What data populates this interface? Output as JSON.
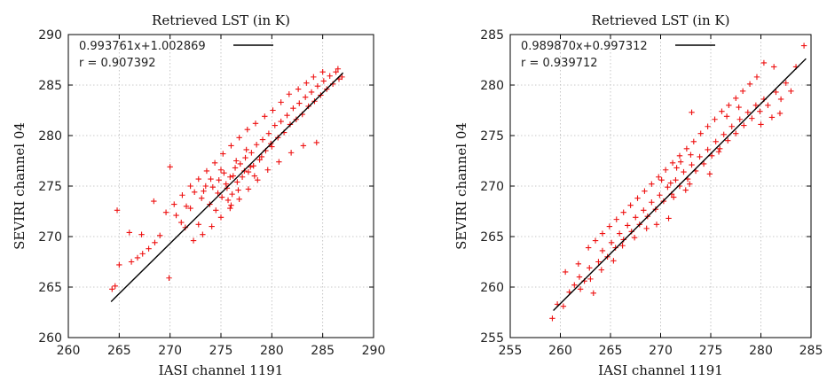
{
  "chart_data": [
    {
      "type": "scatter",
      "title": "Retrieved LST (in K)",
      "xlabel": "IASI channel 1191",
      "ylabel": "SEVIRI channel 04",
      "xlim": [
        260,
        290
      ],
      "ylim": [
        260,
        290
      ],
      "xticks": [
        "260",
        "265",
        "270",
        "275",
        "280",
        "285",
        "290"
      ],
      "yticks": [
        "260",
        "265",
        "270",
        "275",
        "280",
        "285",
        "290"
      ],
      "grid": true,
      "legend_position": "top-left",
      "legend": [
        "0.993761x+1.002869",
        "r = 0.907392"
      ],
      "fit": {
        "slope": 0.993761,
        "intercept": 1.002869,
        "x_range": [
          264.2,
          287.0
        ]
      },
      "point_color": "#ee1111",
      "points": [
        [
          264.3,
          264.8
        ],
        [
          264.6,
          265.1
        ],
        [
          265.0,
          267.2
        ],
        [
          264.8,
          272.6
        ],
        [
          266.2,
          267.5
        ],
        [
          266.8,
          267.9
        ],
        [
          267.3,
          268.3
        ],
        [
          267.9,
          268.8
        ],
        [
          268.5,
          269.4
        ],
        [
          269.0,
          270.1
        ],
        [
          266.0,
          270.4
        ],
        [
          267.2,
          270.2
        ],
        [
          269.9,
          265.9
        ],
        [
          268.4,
          273.5
        ],
        [
          270.0,
          276.9
        ],
        [
          270.6,
          272.1
        ],
        [
          271.1,
          271.4
        ],
        [
          271.6,
          273.0
        ],
        [
          272.0,
          272.8
        ],
        [
          272.4,
          274.4
        ],
        [
          272.8,
          271.2
        ],
        [
          273.1,
          273.8
        ],
        [
          273.5,
          275.0
        ],
        [
          273.9,
          273.2
        ],
        [
          274.2,
          274.9
        ],
        [
          274.5,
          272.6
        ],
        [
          274.8,
          275.6
        ],
        [
          275.1,
          273.9
        ],
        [
          275.3,
          276.3
        ],
        [
          275.6,
          274.8
        ],
        [
          275.9,
          275.9
        ],
        [
          276.1,
          274.2
        ],
        [
          276.4,
          276.8
        ],
        [
          276.6,
          275.4
        ],
        [
          276.9,
          277.2
        ],
        [
          277.1,
          275.9
        ],
        [
          277.4,
          277.8
        ],
        [
          277.7,
          276.4
        ],
        [
          278.0,
          278.3
        ],
        [
          278.2,
          277.0
        ],
        [
          278.5,
          279.1
        ],
        [
          278.8,
          277.6
        ],
        [
          279.1,
          279.6
        ],
        [
          279.4,
          278.5
        ],
        [
          279.7,
          280.2
        ],
        [
          280.0,
          278.9
        ],
        [
          280.3,
          281.0
        ],
        [
          280.6,
          279.8
        ],
        [
          280.9,
          281.4
        ],
        [
          281.2,
          280.3
        ],
        [
          281.5,
          282.0
        ],
        [
          281.8,
          281.1
        ],
        [
          282.1,
          282.7
        ],
        [
          282.4,
          281.6
        ],
        [
          282.7,
          283.2
        ],
        [
          283.0,
          282.1
        ],
        [
          283.3,
          283.8
        ],
        [
          283.6,
          282.9
        ],
        [
          283.9,
          284.3
        ],
        [
          284.2,
          283.4
        ],
        [
          284.5,
          284.9
        ],
        [
          284.8,
          284.0
        ],
        [
          285.1,
          285.4
        ],
        [
          285.4,
          284.6
        ],
        [
          285.7,
          285.9
        ],
        [
          286.0,
          285.1
        ],
        [
          286.3,
          286.3
        ],
        [
          286.6,
          285.6
        ],
        [
          286.9,
          285.8
        ],
        [
          286.5,
          286.6
        ],
        [
          285.0,
          286.3
        ],
        [
          284.1,
          285.8
        ],
        [
          283.4,
          285.2
        ],
        [
          282.6,
          284.6
        ],
        [
          281.7,
          284.1
        ],
        [
          280.9,
          283.3
        ],
        [
          280.1,
          282.5
        ],
        [
          279.3,
          281.9
        ],
        [
          278.4,
          281.2
        ],
        [
          277.6,
          280.6
        ],
        [
          276.8,
          279.8
        ],
        [
          276.0,
          279.0
        ],
        [
          275.2,
          278.2
        ],
        [
          274.4,
          277.3
        ],
        [
          273.6,
          276.5
        ],
        [
          272.8,
          275.7
        ],
        [
          272.0,
          275.0
        ],
        [
          271.2,
          274.1
        ],
        [
          270.4,
          273.2
        ],
        [
          269.6,
          272.4
        ],
        [
          284.4,
          279.3
        ],
        [
          283.1,
          279.0
        ],
        [
          281.9,
          278.3
        ],
        [
          280.7,
          277.4
        ],
        [
          279.6,
          276.6
        ],
        [
          278.6,
          275.6
        ],
        [
          277.7,
          274.7
        ],
        [
          276.8,
          273.7
        ],
        [
          275.9,
          272.8
        ],
        [
          275.0,
          271.9
        ],
        [
          274.1,
          271.0
        ],
        [
          273.2,
          270.2
        ],
        [
          272.3,
          269.6
        ],
        [
          271.5,
          270.9
        ],
        [
          275.5,
          275.2
        ],
        [
          276.2,
          276.0
        ],
        [
          276.7,
          274.6
        ],
        [
          277.3,
          276.5
        ],
        [
          275.7,
          273.6
        ],
        [
          276.5,
          277.5
        ],
        [
          277.9,
          276.9
        ],
        [
          274.7,
          274.3
        ],
        [
          275.0,
          276.6
        ],
        [
          276.0,
          273.1
        ],
        [
          277.5,
          278.6
        ],
        [
          278.3,
          276.0
        ],
        [
          274.0,
          275.7
        ],
        [
          273.3,
          274.5
        ],
        [
          279.0,
          277.9
        ],
        [
          279.9,
          279.2
        ]
      ]
    },
    {
      "type": "scatter",
      "title": "Retrieved LST (in K)",
      "xlabel": "IASI channel 1191",
      "ylabel": "SEVIRI channel 04",
      "xlim": [
        255,
        285
      ],
      "ylim": [
        255,
        285
      ],
      "xticks": [
        "255",
        "260",
        "265",
        "270",
        "275",
        "280",
        "285"
      ],
      "yticks": [
        "255",
        "260",
        "265",
        "270",
        "275",
        "280",
        "285"
      ],
      "grid": true,
      "legend_position": "top-left",
      "legend": [
        "0.989870x+0.997312",
        "r = 0.939712"
      ],
      "fit": {
        "slope": 0.98987,
        "intercept": 0.997312,
        "x_range": [
          259.3,
          284.5
        ]
      },
      "point_color": "#ee1111",
      "points": [
        [
          259.2,
          256.9
        ],
        [
          259.7,
          258.3
        ],
        [
          260.3,
          258.1
        ],
        [
          260.9,
          259.5
        ],
        [
          261.4,
          260.2
        ],
        [
          261.9,
          261.0
        ],
        [
          262.4,
          260.6
        ],
        [
          262.9,
          261.9
        ],
        [
          263.3,
          259.4
        ],
        [
          263.8,
          262.5
        ],
        [
          264.2,
          263.6
        ],
        [
          264.7,
          263.0
        ],
        [
          265.1,
          264.4
        ],
        [
          265.5,
          263.9
        ],
        [
          265.9,
          265.3
        ],
        [
          266.3,
          264.7
        ],
        [
          266.7,
          266.1
        ],
        [
          267.1,
          265.5
        ],
        [
          267.5,
          266.9
        ],
        [
          267.9,
          266.2
        ],
        [
          268.3,
          267.6
        ],
        [
          268.7,
          267.0
        ],
        [
          269.1,
          268.4
        ],
        [
          269.5,
          267.7
        ],
        [
          269.9,
          269.1
        ],
        [
          270.3,
          268.5
        ],
        [
          270.7,
          269.9
        ],
        [
          271.1,
          269.2
        ],
        [
          271.5,
          270.6
        ],
        [
          271.9,
          270.0
        ],
        [
          272.3,
          271.4
        ],
        [
          272.7,
          270.7
        ],
        [
          273.1,
          272.1
        ],
        [
          273.5,
          271.5
        ],
        [
          273.9,
          272.9
        ],
        [
          274.3,
          272.2
        ],
        [
          274.7,
          273.6
        ],
        [
          275.1,
          273.0
        ],
        [
          275.5,
          274.4
        ],
        [
          275.9,
          273.7
        ],
        [
          276.3,
          275.1
        ],
        [
          276.7,
          274.5
        ],
        [
          277.1,
          275.9
        ],
        [
          277.5,
          275.2
        ],
        [
          277.9,
          276.6
        ],
        [
          278.3,
          276.0
        ],
        [
          278.7,
          277.3
        ],
        [
          279.1,
          276.7
        ],
        [
          279.5,
          278.0
        ],
        [
          279.9,
          277.4
        ],
        [
          280.3,
          278.6
        ],
        [
          280.7,
          278.0
        ],
        [
          281.1,
          276.8
        ],
        [
          281.5,
          279.3
        ],
        [
          282.0,
          278.6
        ],
        [
          282.5,
          280.2
        ],
        [
          283.0,
          279.4
        ],
        [
          283.5,
          281.8
        ],
        [
          284.3,
          283.9
        ],
        [
          281.3,
          281.8
        ],
        [
          280.3,
          282.2
        ],
        [
          279.6,
          280.8
        ],
        [
          278.9,
          280.1
        ],
        [
          278.2,
          279.4
        ],
        [
          277.5,
          278.7
        ],
        [
          276.8,
          278.0
        ],
        [
          276.1,
          277.4
        ],
        [
          275.4,
          276.6
        ],
        [
          274.7,
          275.9
        ],
        [
          274.0,
          275.2
        ],
        [
          273.3,
          274.4
        ],
        [
          272.6,
          273.7
        ],
        [
          271.9,
          273.0
        ],
        [
          271.2,
          272.3
        ],
        [
          270.5,
          271.6
        ],
        [
          269.8,
          270.9
        ],
        [
          269.1,
          270.2
        ],
        [
          268.4,
          269.5
        ],
        [
          267.7,
          268.8
        ],
        [
          267.0,
          268.1
        ],
        [
          266.3,
          267.4
        ],
        [
          265.6,
          266.7
        ],
        [
          264.9,
          266.0
        ],
        [
          264.2,
          265.3
        ],
        [
          263.5,
          264.6
        ],
        [
          262.8,
          263.9
        ],
        [
          261.8,
          262.3
        ],
        [
          260.5,
          261.5
        ],
        [
          273.1,
          277.3
        ],
        [
          274.9,
          271.2
        ],
        [
          275.8,
          273.4
        ],
        [
          276.6,
          276.9
        ],
        [
          277.8,
          277.8
        ],
        [
          280.0,
          276.1
        ],
        [
          281.9,
          277.2
        ],
        [
          270.8,
          266.8
        ],
        [
          269.6,
          266.2
        ],
        [
          268.6,
          265.8
        ],
        [
          267.4,
          264.9
        ],
        [
          266.2,
          264.1
        ],
        [
          265.3,
          262.6
        ],
        [
          264.1,
          261.7
        ],
        [
          263.0,
          260.8
        ],
        [
          262.0,
          259.8
        ],
        [
          271.0,
          270.3
        ],
        [
          272.0,
          272.4
        ],
        [
          272.5,
          269.6
        ],
        [
          273.0,
          273.1
        ],
        [
          271.6,
          271.8
        ],
        [
          270.1,
          270.6
        ],
        [
          272.9,
          270.2
        ],
        [
          271.3,
          268.9
        ]
      ]
    }
  ]
}
